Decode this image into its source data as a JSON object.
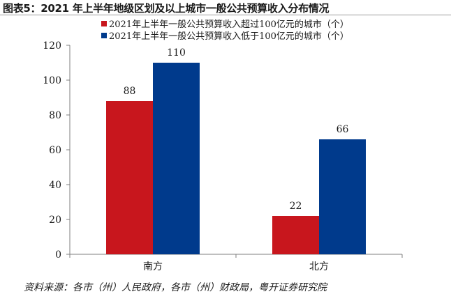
{
  "figure": {
    "title": "图表5：2021 年上半年地级区划及以上城市一般公共预算收入分布情况",
    "source": "资料来源：各市（州）人民政府，各市（州）财政局，粤开证券研究院"
  },
  "chart_data": {
    "type": "bar",
    "categories": [
      "南方",
      "北方"
    ],
    "series": [
      {
        "name": "2021年上半年一般公共预算收入超过100亿元的城市（个）",
        "values": [
          88,
          22
        ],
        "color": "#c8161d"
      },
      {
        "name": "2021年上半年一般公共预算收入低于100亿元的城市（个）",
        "values": [
          110,
          66
        ],
        "color": "#003a8c"
      }
    ],
    "yticks": [
      0,
      20,
      40,
      60,
      80,
      100,
      120
    ],
    "ylim": [
      0,
      120
    ],
    "xlabel": "",
    "ylabel": "",
    "legend": "top",
    "grid": false,
    "data_labels": true
  }
}
